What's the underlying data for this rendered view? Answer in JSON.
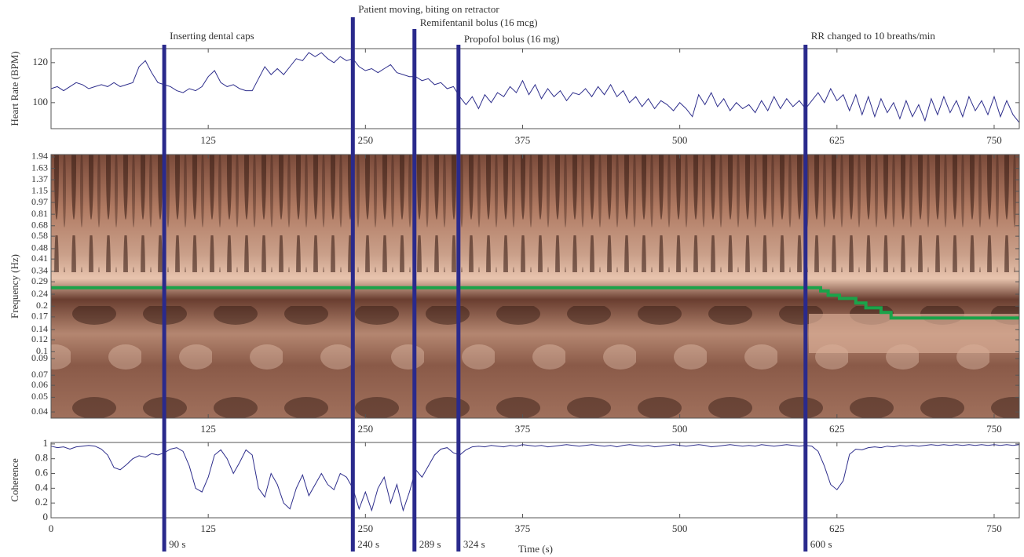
{
  "chart_data": [
    {
      "type": "line",
      "ylabel": "Heart Rate (BPM)",
      "color": "#2e2e8c",
      "xlim": [
        0,
        770
      ],
      "ylim": [
        87,
        127
      ],
      "xticks": [
        125,
        250,
        375,
        500,
        625,
        750
      ],
      "yticks": [
        100,
        120
      ],
      "x": [
        0,
        5,
        10,
        15,
        20,
        25,
        30,
        35,
        40,
        45,
        50,
        55,
        60,
        65,
        70,
        75,
        80,
        85,
        90,
        95,
        100,
        105,
        110,
        115,
        120,
        125,
        130,
        135,
        140,
        145,
        150,
        155,
        160,
        165,
        170,
        175,
        180,
        185,
        190,
        195,
        200,
        205,
        210,
        215,
        220,
        225,
        230,
        235,
        240,
        245,
        250,
        255,
        260,
        265,
        270,
        275,
        280,
        285,
        290,
        295,
        300,
        305,
        310,
        315,
        320,
        325,
        330,
        335,
        340,
        345,
        350,
        355,
        360,
        365,
        370,
        375,
        380,
        385,
        390,
        395,
        400,
        405,
        410,
        415,
        420,
        425,
        430,
        435,
        440,
        445,
        450,
        455,
        460,
        465,
        470,
        475,
        480,
        485,
        490,
        495,
        500,
        505,
        510,
        515,
        520,
        525,
        530,
        535,
        540,
        545,
        550,
        555,
        560,
        565,
        570,
        575,
        580,
        585,
        590,
        595,
        600,
        605,
        610,
        615,
        620,
        625,
        630,
        635,
        640,
        645,
        650,
        655,
        660,
        665,
        670,
        675,
        680,
        685,
        690,
        695,
        700,
        705,
        710,
        715,
        720,
        725,
        730,
        735,
        740,
        745,
        750,
        755,
        760,
        765,
        770
      ],
      "values": [
        107,
        108,
        106,
        108,
        110,
        109,
        107,
        108,
        109,
        108,
        110,
        108,
        109,
        110,
        118,
        121,
        115,
        110,
        109,
        108,
        106,
        105,
        107,
        106,
        108,
        113,
        116,
        110,
        108,
        109,
        107,
        106,
        106,
        112,
        118,
        114,
        117,
        114,
        118,
        122,
        121,
        125,
        123,
        125,
        122,
        120,
        123,
        121,
        122,
        118,
        116,
        117,
        115,
        117,
        119,
        115,
        114,
        113,
        113,
        111,
        112,
        109,
        110,
        107,
        108,
        103,
        99,
        103,
        97,
        104,
        100,
        105,
        103,
        108,
        105,
        111,
        104,
        109,
        102,
        107,
        103,
        106,
        101,
        105,
        104,
        107,
        103,
        108,
        104,
        109,
        103,
        106,
        100,
        103,
        98,
        102,
        97,
        101,
        99,
        96,
        100,
        97,
        93,
        104,
        99,
        105,
        98,
        102,
        96,
        100,
        97,
        99,
        95,
        101,
        96,
        103,
        97,
        102,
        98,
        101,
        97,
        101,
        105,
        100,
        107,
        101,
        104,
        96,
        104,
        94,
        103,
        93,
        102,
        95,
        100,
        92,
        101,
        93,
        99,
        91,
        102,
        94,
        103,
        95,
        101,
        93,
        103,
        96,
        101,
        94,
        103,
        93,
        101,
        94,
        90
      ]
    },
    {
      "type": "line",
      "ylabel": "Frequency (Hz)",
      "color": "#1aa34a",
      "ylog": true,
      "xlim": [
        0,
        770
      ],
      "ylim": [
        0.0364,
        2.01
      ],
      "xticks": [
        125,
        250,
        375,
        500,
        625,
        750
      ],
      "yticks": [
        1.94,
        1.63,
        1.37,
        1.15,
        0.97,
        0.81,
        0.68,
        0.58,
        0.48,
        0.41,
        0.34,
        0.29,
        0.24,
        0.2,
        0.17,
        0.14,
        0.12,
        0.1,
        0.09,
        0.07,
        0.06,
        0.05,
        0.04
      ],
      "x": [
        0,
        612,
        612,
        618,
        618,
        627,
        627,
        640,
        640,
        648,
        648,
        660,
        660,
        668,
        668,
        770
      ],
      "values": [
        0.265,
        0.265,
        0.252,
        0.252,
        0.236,
        0.236,
        0.225,
        0.225,
        0.21,
        0.21,
        0.195,
        0.195,
        0.182,
        0.182,
        0.167,
        0.167
      ]
    },
    {
      "type": "line",
      "ylabel": "Coherence",
      "xlabel": "Time (s)",
      "color": "#2e2e8c",
      "xlim": [
        0,
        770
      ],
      "ylim": [
        0,
        1.02
      ],
      "xticks": [
        0,
        125,
        250,
        375,
        500,
        625,
        750
      ],
      "yticks": [
        0,
        0.2,
        0.4,
        0.6,
        0.8,
        1
      ],
      "x": [
        0,
        5,
        10,
        15,
        20,
        25,
        30,
        35,
        40,
        45,
        50,
        55,
        60,
        65,
        70,
        75,
        80,
        85,
        90,
        95,
        100,
        105,
        110,
        115,
        120,
        125,
        130,
        135,
        140,
        145,
        150,
        155,
        160,
        165,
        170,
        175,
        180,
        185,
        190,
        195,
        200,
        205,
        210,
        215,
        220,
        225,
        230,
        235,
        240,
        245,
        250,
        255,
        260,
        265,
        270,
        275,
        280,
        285,
        290,
        295,
        300,
        305,
        310,
        315,
        320,
        325,
        330,
        335,
        340,
        345,
        350,
        355,
        360,
        365,
        370,
        375,
        380,
        385,
        390,
        395,
        400,
        405,
        410,
        415,
        420,
        425,
        430,
        435,
        440,
        445,
        450,
        455,
        460,
        465,
        470,
        475,
        480,
        485,
        490,
        495,
        500,
        505,
        510,
        515,
        520,
        525,
        530,
        535,
        540,
        545,
        550,
        555,
        560,
        565,
        570,
        575,
        580,
        585,
        590,
        595,
        600,
        605,
        610,
        615,
        620,
        625,
        630,
        635,
        640,
        645,
        650,
        655,
        660,
        665,
        670,
        675,
        680,
        685,
        690,
        695,
        700,
        705,
        710,
        715,
        720,
        725,
        730,
        735,
        740,
        745,
        750,
        755,
        760,
        765,
        770
      ],
      "values": [
        0.97,
        0.95,
        0.96,
        0.93,
        0.96,
        0.97,
        0.98,
        0.97,
        0.93,
        0.85,
        0.68,
        0.65,
        0.72,
        0.8,
        0.84,
        0.82,
        0.87,
        0.85,
        0.88,
        0.93,
        0.95,
        0.9,
        0.7,
        0.4,
        0.35,
        0.55,
        0.85,
        0.92,
        0.8,
        0.6,
        0.75,
        0.92,
        0.85,
        0.4,
        0.28,
        0.6,
        0.45,
        0.2,
        0.12,
        0.4,
        0.58,
        0.3,
        0.45,
        0.6,
        0.45,
        0.38,
        0.6,
        0.55,
        0.4,
        0.12,
        0.35,
        0.1,
        0.4,
        0.55,
        0.2,
        0.45,
        0.1,
        0.35,
        0.65,
        0.55,
        0.7,
        0.85,
        0.93,
        0.95,
        0.88,
        0.85,
        0.92,
        0.96,
        0.97,
        0.96,
        0.98,
        0.97,
        0.96,
        0.98,
        0.97,
        0.99,
        0.98,
        0.97,
        0.98,
        0.96,
        0.97,
        0.98,
        0.99,
        0.98,
        0.97,
        0.98,
        0.99,
        0.98,
        0.97,
        0.98,
        0.96,
        0.98,
        0.99,
        0.98,
        0.97,
        0.98,
        0.96,
        0.97,
        0.98,
        0.99,
        0.98,
        0.97,
        0.98,
        0.99,
        0.98,
        0.96,
        0.97,
        0.98,
        0.99,
        0.98,
        0.97,
        0.98,
        0.97,
        0.99,
        0.98,
        0.97,
        0.98,
        0.99,
        0.98,
        0.97,
        0.98,
        0.97,
        0.9,
        0.7,
        0.45,
        0.38,
        0.5,
        0.86,
        0.93,
        0.92,
        0.95,
        0.96,
        0.95,
        0.97,
        0.96,
        0.98,
        0.97,
        0.98,
        0.97,
        0.98,
        0.99,
        0.98,
        0.99,
        0.98,
        0.99,
        0.98,
        0.99,
        0.98,
        0.99,
        0.98,
        0.99,
        0.98,
        0.99,
        0.98,
        0.99
      ]
    }
  ],
  "events": [
    {
      "time": {
        "value": 90,
        "label": "90 s"
      },
      "annotation": "Inserting dental caps"
    },
    {
      "time": {
        "value": 240,
        "label": "240 s"
      },
      "annotation": "Patient moving, biting on retractor"
    },
    {
      "time": {
        "value": 289,
        "label": "289 s"
      },
      "annotation": "Remifentanil bolus (16 mcg)"
    },
    {
      "time": {
        "value": 324,
        "label": "324 s"
      },
      "annotation": "Propofol bolus (16 mg)"
    },
    {
      "time": {
        "value": 600,
        "label": "600 s"
      },
      "annotation": "RR changed to 10 breaths/min"
    }
  ]
}
